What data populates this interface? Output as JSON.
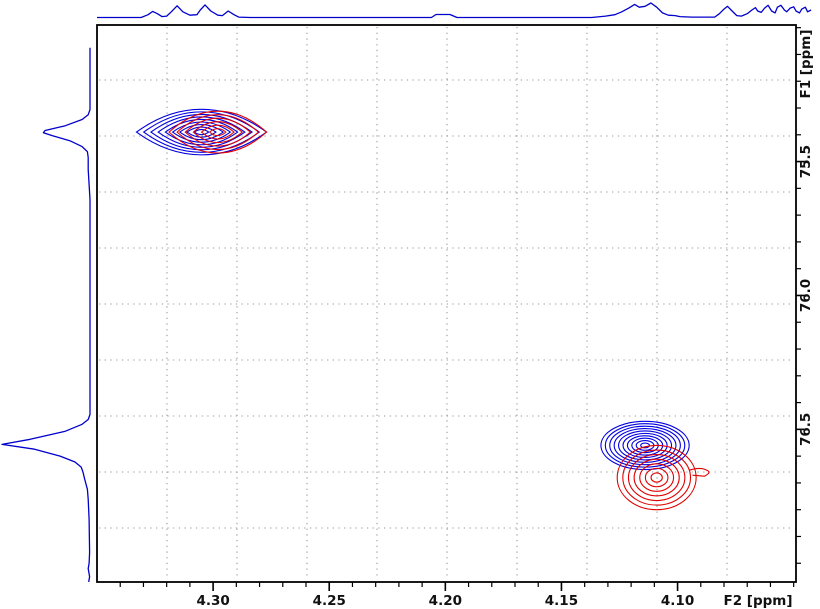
{
  "chart_data": {
    "type": "scatter",
    "subtype": "nmr-2d-contour-hsqc-overlay",
    "title": "",
    "axes": {
      "f2": {
        "label": "F2 [ppm]",
        "range": [
          4.35,
          4.049
        ],
        "major_ticks": [
          4.3,
          4.25,
          4.2,
          4.15,
          4.1
        ],
        "minor_tick_step": 0.01,
        "decimals": 2,
        "position": "bottom"
      },
      "f1": {
        "label": "F1 [ppm]",
        "range": [
          74.99,
          77.07
        ],
        "major_ticks": [
          75.5,
          76.0,
          76.5
        ],
        "minor_tick_step": 0.1,
        "decimals": 1,
        "position": "right"
      }
    },
    "grid": {
      "visible": true,
      "style": "dotted"
    },
    "colors": {
      "contour_blue": "#0000e0",
      "contour_red": "#e00000",
      "trace_blue": "#0000cc",
      "axis": "#000000",
      "grid": "#9a9a9a",
      "background": "#ffffff"
    },
    "cross_peaks": [
      {
        "id": "peak-1-blue",
        "color": "#0000e0",
        "f2_ppm": 4.305,
        "f1_ppm": 75.39,
        "f2_halfwidth_ppm": 0.028,
        "f1_halfwidth_ppm": 0.085,
        "levels": 9,
        "shape": "lens"
      },
      {
        "id": "peak-1-red",
        "color": "#e00000",
        "f2_ppm": 4.298,
        "f1_ppm": 75.39,
        "f2_halfwidth_ppm": 0.021,
        "f1_halfwidth_ppm": 0.078,
        "levels": 6,
        "shape": "lens"
      },
      {
        "id": "peak-2-blue",
        "color": "#0000e0",
        "f2_ppm": 4.114,
        "f1_ppm": 76.56,
        "f2_halfwidth_ppm": 0.019,
        "f1_halfwidth_ppm": 0.09,
        "levels": 10,
        "shape": "ellipse"
      },
      {
        "id": "peak-2-red",
        "color": "#e00000",
        "f2_ppm": 4.109,
        "f1_ppm": 76.68,
        "f2_halfwidth_ppm": 0.017,
        "f1_halfwidth_ppm": 0.12,
        "levels": 7,
        "shape": "ellipse",
        "spur": {
          "f2_ppm": 4.088,
          "f1_ppm": 76.66
        }
      }
    ],
    "projections": {
      "top": {
        "axis": "f2",
        "points": [
          [
            4.35,
            0
          ],
          [
            4.331,
            0
          ],
          [
            4.328,
            0.19
          ],
          [
            4.326,
            0.42
          ],
          [
            4.324,
            0.26
          ],
          [
            4.322,
            0.06
          ],
          [
            4.32,
            0.1
          ],
          [
            4.318,
            0.39
          ],
          [
            4.3155,
            0.81
          ],
          [
            4.313,
            0.39
          ],
          [
            4.31,
            0.16
          ],
          [
            4.307,
            0.19
          ],
          [
            4.3055,
            0.52
          ],
          [
            4.3035,
            0.87
          ],
          [
            4.301,
            0.45
          ],
          [
            4.298,
            0.16
          ],
          [
            4.296,
            0.13
          ],
          [
            4.2935,
            0.45
          ],
          [
            4.291,
            0.19
          ],
          [
            4.289,
            0.03
          ],
          [
            4.284,
            0
          ],
          [
            4.206,
            0
          ],
          [
            4.204,
            0.21
          ],
          [
            4.198,
            0.21
          ],
          [
            4.195,
            0
          ],
          [
            4.137,
            0
          ],
          [
            4.131,
            0.1
          ],
          [
            4.127,
            0.19
          ],
          [
            4.124,
            0.39
          ],
          [
            4.121,
            0.65
          ],
          [
            4.1185,
            0.9
          ],
          [
            4.1165,
            0.71
          ],
          [
            4.114,
            0.77
          ],
          [
            4.1115,
            1.0
          ],
          [
            4.109,
            0.71
          ],
          [
            4.1065,
            0.32
          ],
          [
            4.104,
            0.16
          ],
          [
            4.101,
            0.13
          ],
          [
            4.099,
            0.06
          ],
          [
            4.094,
            0.03
          ],
          [
            4.084,
            0.03
          ],
          [
            4.082,
            0.26
          ],
          [
            4.08,
            0.58
          ],
          [
            4.0785,
            0.77
          ],
          [
            4.0765,
            0.45
          ],
          [
            4.0745,
            0.13
          ],
          [
            4.0725,
            0.1
          ],
          [
            4.07,
            0.26
          ],
          [
            4.068,
            0.52
          ],
          [
            4.0665,
            0.68
          ],
          [
            4.0655,
            0.45
          ],
          [
            4.064,
            0.35
          ],
          [
            4.0625,
            0.65
          ],
          [
            4.061,
            0.84
          ],
          [
            4.0595,
            0.45
          ],
          [
            4.058,
            0.32
          ],
          [
            4.057,
            0.71
          ],
          [
            4.0555,
            0.84
          ],
          [
            4.054,
            0.52
          ],
          [
            4.053,
            0.39
          ],
          [
            4.0515,
            0.65
          ],
          [
            4.05,
            0.74
          ],
          [
            4.049,
            0.45
          ],
          [
            4.0475,
            0.32
          ],
          [
            4.0465,
            0.58
          ],
          [
            4.045,
            0.71
          ],
          [
            4.044,
            0.39
          ],
          [
            4.0425,
            0.52
          ]
        ]
      },
      "left": {
        "axis": "f1",
        "points": [
          [
            75.075,
            0
          ],
          [
            75.306,
            0
          ],
          [
            75.325,
            0.02
          ],
          [
            75.343,
            0.09
          ],
          [
            75.366,
            0.28
          ],
          [
            75.384,
            0.51
          ],
          [
            75.392,
            0.53
          ],
          [
            75.403,
            0.43
          ],
          [
            75.422,
            0.23
          ],
          [
            75.444,
            0.09
          ],
          [
            75.463,
            0.03
          ],
          [
            75.485,
            0.02
          ],
          [
            75.53,
            0.02
          ],
          [
            75.586,
            0.01
          ],
          [
            75.642,
            0
          ],
          [
            76.444,
            0
          ],
          [
            76.463,
            0.02
          ],
          [
            76.481,
            0.09
          ],
          [
            76.507,
            0.28
          ],
          [
            76.537,
            0.68
          ],
          [
            76.556,
            1.0
          ],
          [
            76.574,
            0.63
          ],
          [
            76.6,
            0.34
          ],
          [
            76.622,
            0.17
          ],
          [
            76.641,
            0.1
          ],
          [
            76.66,
            0.08
          ],
          [
            76.686,
            0.06
          ],
          [
            76.724,
            0.03
          ],
          [
            76.761,
            0.02
          ],
          [
            76.836,
            0.01
          ],
          [
            76.96,
            0.005
          ],
          [
            77.0,
            0.01
          ],
          [
            77.02,
            0.02
          ],
          [
            77.05,
            0.005
          ],
          [
            77.07,
            0.015
          ]
        ]
      }
    }
  }
}
